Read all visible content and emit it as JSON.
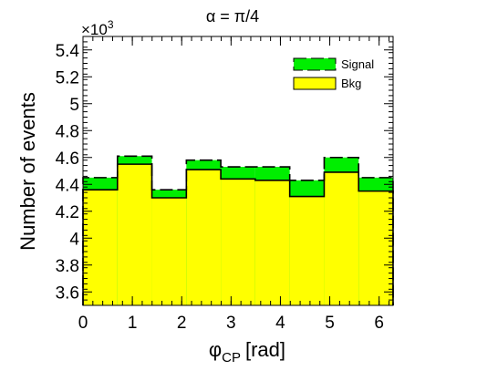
{
  "chart_data": {
    "type": "bar",
    "title": "α = π/4",
    "xlabel": "φ",
    "xlabel_sub": "CP",
    "xlabel_unit": "[rad]",
    "ylabel": "Number of events",
    "y_multiplier": "×10",
    "y_multiplier_exp": "3",
    "xlim": [
      0,
      6.2832
    ],
    "ylim": [
      3.5,
      5.5
    ],
    "x_ticks": [
      0,
      1,
      2,
      3,
      4,
      5,
      6
    ],
    "y_ticks": [
      3.6,
      3.8,
      4,
      4.2,
      4.4,
      4.6,
      4.8,
      5,
      5.2,
      5.4
    ],
    "bin_edges": [
      0,
      0.6981,
      1.3963,
      2.0944,
      2.7925,
      3.4907,
      4.1888,
      4.8869,
      5.5851,
      6.2832
    ],
    "series": [
      {
        "name": "Bkg",
        "values": [
          4.36,
          4.55,
          4.3,
          4.51,
          4.44,
          4.43,
          4.31,
          4.49,
          4.35
        ]
      },
      {
        "name": "Signal",
        "values": [
          4.45,
          4.61,
          4.36,
          4.58,
          4.53,
          4.53,
          4.43,
          4.6,
          4.45
        ]
      }
    ],
    "legend_position": "top-right",
    "colors": {
      "signal": "#00ee00",
      "bkg": "#ffff00",
      "line": "#000000"
    }
  }
}
